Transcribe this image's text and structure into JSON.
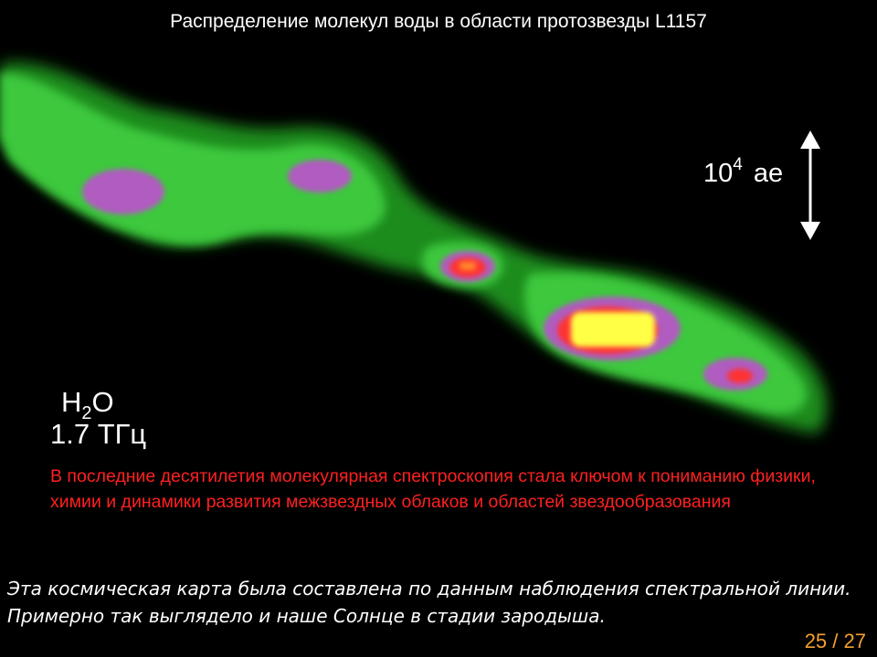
{
  "slide": {
    "title": "Распределение молекул воды в области протозвезды L1157",
    "scale_bar": {
      "base": "10",
      "exponent": "4",
      "unit": "ае"
    },
    "molecule": {
      "prefix": "H",
      "subscript": "2",
      "suffix": "O"
    },
    "frequency": "1.7 ТГц",
    "note": "В последние десятилетия молекулярная спектроскопия стала ключом к пониманию физики, химии и динамики развития межзвездных облаков и областей звездообразования",
    "caption": "Эта космическая карта была составлена по данным наблюдения спектральной линии. Примерно так выглядело и наше Солнце в стадии зародыша.",
    "page": {
      "current": "25",
      "separator": " / ",
      "total": "27"
    }
  },
  "colors": {
    "background": "#000000",
    "emission_low": "#1f8a1f",
    "emission_mid": "#3fd23f",
    "emission_high": "#b05cc0",
    "emission_peak": "#ff2a2a",
    "emission_core": "#ffff40",
    "note_text": "#ff2020",
    "page_number": "#f5a030"
  }
}
